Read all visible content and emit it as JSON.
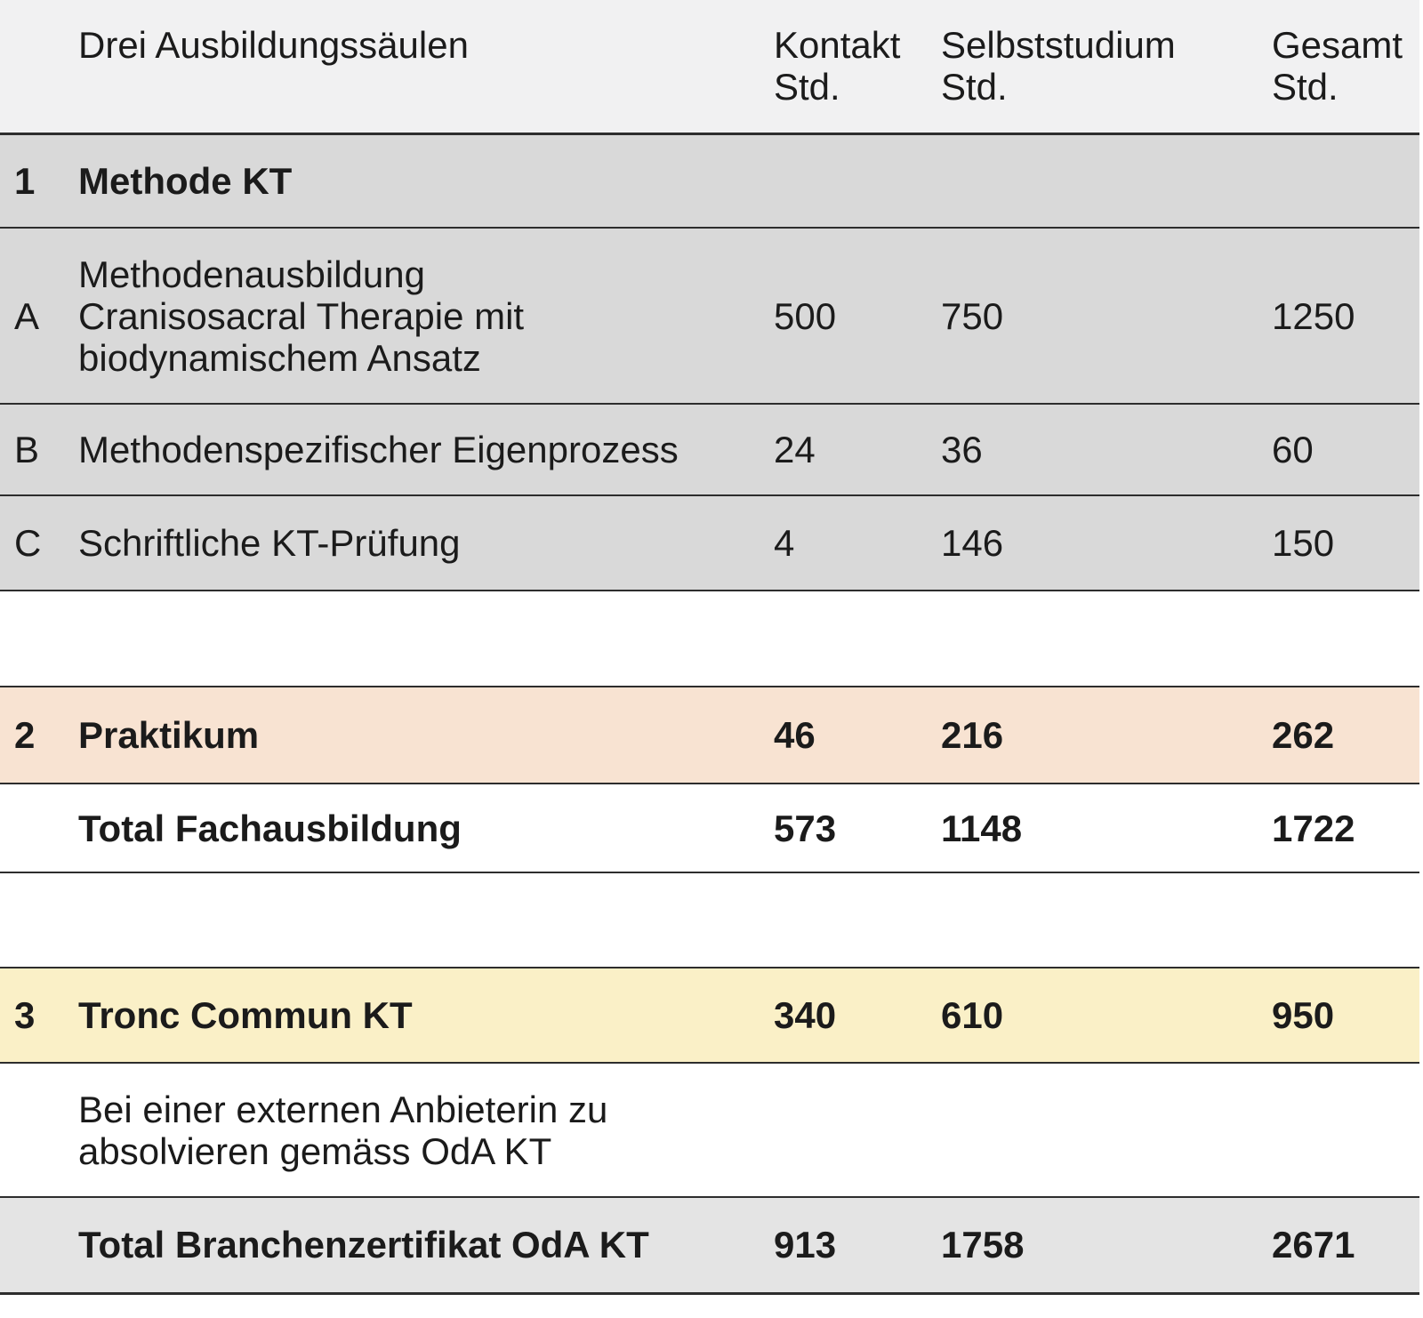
{
  "table": {
    "title": "Drei Ausbildungssäulen",
    "columns": {
      "label": "Drei Ausbildungssäulen",
      "kontakt": "Kontakt\nStd.",
      "selbststudium": "Selbststudium\nStd.",
      "gesamt": "Gesamt\nStd."
    },
    "rows": [
      {
        "index": "1",
        "label": "Methode KT",
        "kontakt": "",
        "selbststudium": "",
        "gesamt": ""
      },
      {
        "index": "A",
        "label": "Methodenausbildung\nCranisosacral Therapie mit\nbiodynamischem Ansatz",
        "kontakt": "500",
        "selbststudium": "750",
        "gesamt": "1250"
      },
      {
        "index": "B",
        "label": "Methodenspezifischer Eigenprozess",
        "kontakt": "24",
        "selbststudium": "36",
        "gesamt": "60"
      },
      {
        "index": "C",
        "label": "Schriftliche KT-Prüfung",
        "kontakt": "4",
        "selbststudium": "146",
        "gesamt": "150"
      },
      {
        "index": "2",
        "label": "Praktikum",
        "kontakt": "46",
        "selbststudium": "216",
        "gesamt": "262"
      },
      {
        "index": "",
        "label": "Total Fachausbildung",
        "kontakt": "573",
        "selbststudium": "1148",
        "gesamt": "1722"
      },
      {
        "index": "3",
        "label": "Tronc Commun KT",
        "kontakt": "340",
        "selbststudium": "610",
        "gesamt": "950"
      },
      {
        "index": "",
        "label": "Bei einer externen Anbieterin zu\nabsolvieren gemäss OdA KT",
        "kontakt": "",
        "selbststudium": "",
        "gesamt": ""
      },
      {
        "index": "",
        "label": "Total Branchenzertifikat OdA KT",
        "kontakt": "913",
        "selbststudium": "1758",
        "gesamt": "2671"
      }
    ]
  },
  "colors": {
    "header_bg": "#f1f1f2",
    "section_gray_bg": "#d9d9d9",
    "praktikum_peach_bg": "#f8e3d2",
    "tronc_yellow_bg": "#faf0c7",
    "total_gray_bg": "#e4e4e4",
    "rule_dark": "#2d2d2d",
    "text": "#1b1b1b"
  }
}
